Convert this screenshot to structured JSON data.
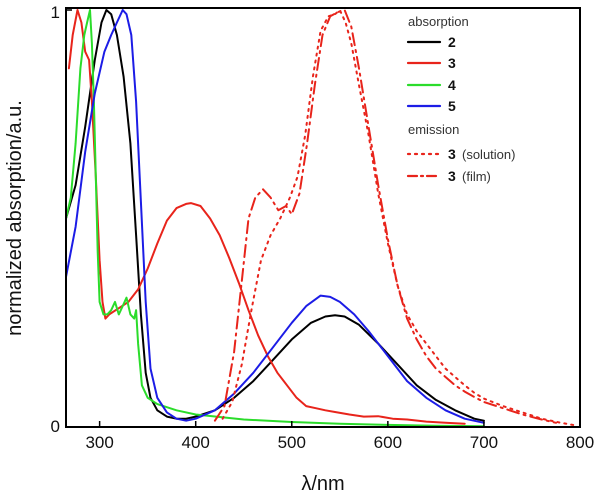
{
  "chart_data": {
    "type": "line",
    "title": "",
    "xlabel": "λ/nm",
    "ylabel": "normalized absorption/a.u.",
    "xlim": [
      265,
      800
    ],
    "ylim": [
      0,
      1
    ],
    "x_ticks": [
      "300",
      "400",
      "500",
      "600",
      "700",
      "800"
    ],
    "y_ticks": [
      "0",
      "1"
    ],
    "legend": {
      "position": "top-right",
      "group_absorption": "absorption",
      "group_emission": "emission",
      "entries": [
        {
          "key": "s2",
          "number": "2",
          "suffix": ""
        },
        {
          "key": "s3",
          "number": "3",
          "suffix": ""
        },
        {
          "key": "s4",
          "number": "4",
          "suffix": ""
        },
        {
          "key": "s5",
          "number": "5",
          "suffix": ""
        },
        {
          "key": "s3sol",
          "number": "3",
          "suffix": "(solution)"
        },
        {
          "key": "s3film",
          "number": "3",
          "suffix": "(film)"
        }
      ]
    },
    "series": [
      {
        "key": "s2",
        "name": "2",
        "group": "absorption",
        "color": "#000000",
        "dash": "solid",
        "points": [
          [
            265,
            0.5
          ],
          [
            275,
            0.58
          ],
          [
            285,
            0.72
          ],
          [
            295,
            0.88
          ],
          [
            302,
            0.97
          ],
          [
            307,
            1.0
          ],
          [
            312,
            0.99
          ],
          [
            318,
            0.94
          ],
          [
            325,
            0.84
          ],
          [
            332,
            0.68
          ],
          [
            338,
            0.46
          ],
          [
            343,
            0.27
          ],
          [
            348,
            0.13
          ],
          [
            353,
            0.07
          ],
          [
            360,
            0.04
          ],
          [
            370,
            0.025
          ],
          [
            380,
            0.02
          ],
          [
            390,
            0.02
          ],
          [
            400,
            0.025
          ],
          [
            420,
            0.04
          ],
          [
            440,
            0.07
          ],
          [
            460,
            0.11
          ],
          [
            480,
            0.16
          ],
          [
            500,
            0.21
          ],
          [
            520,
            0.25
          ],
          [
            535,
            0.265
          ],
          [
            545,
            0.268
          ],
          [
            555,
            0.265
          ],
          [
            570,
            0.245
          ],
          [
            590,
            0.2
          ],
          [
            610,
            0.15
          ],
          [
            630,
            0.1
          ],
          [
            650,
            0.065
          ],
          [
            670,
            0.04
          ],
          [
            690,
            0.02
          ],
          [
            700,
            0.015
          ]
        ]
      },
      {
        "key": "s3",
        "name": "3",
        "group": "absorption",
        "color": "#e8241b",
        "dash": "solid",
        "points": [
          [
            268,
            0.86
          ],
          [
            272,
            0.94
          ],
          [
            277,
            1.0
          ],
          [
            281,
            0.97
          ],
          [
            285,
            0.9
          ],
          [
            289,
            0.88
          ],
          [
            292,
            0.78
          ],
          [
            296,
            0.6
          ],
          [
            300,
            0.4
          ],
          [
            303,
            0.3
          ],
          [
            306,
            0.26
          ],
          [
            310,
            0.27
          ],
          [
            320,
            0.285
          ],
          [
            330,
            0.3
          ],
          [
            340,
            0.33
          ],
          [
            350,
            0.38
          ],
          [
            360,
            0.44
          ],
          [
            370,
            0.495
          ],
          [
            380,
            0.525
          ],
          [
            390,
            0.535
          ],
          [
            395,
            0.537
          ],
          [
            405,
            0.53
          ],
          [
            415,
            0.5
          ],
          [
            425,
            0.46
          ],
          [
            435,
            0.405
          ],
          [
            445,
            0.345
          ],
          [
            455,
            0.28
          ],
          [
            465,
            0.22
          ],
          [
            475,
            0.17
          ],
          [
            485,
            0.13
          ],
          [
            495,
            0.1
          ],
          [
            505,
            0.07
          ],
          [
            515,
            0.05
          ],
          [
            525,
            0.045
          ],
          [
            535,
            0.04
          ],
          [
            545,
            0.036
          ],
          [
            560,
            0.03
          ],
          [
            575,
            0.025
          ],
          [
            590,
            0.026
          ],
          [
            605,
            0.02
          ],
          [
            620,
            0.018
          ],
          [
            640,
            0.013
          ],
          [
            660,
            0.01
          ],
          [
            680,
            0.008
          ]
        ]
      },
      {
        "key": "s4",
        "name": "4",
        "group": "absorption",
        "color": "#2bdc2b",
        "dash": "solid",
        "points": [
          [
            265,
            0.5
          ],
          [
            270,
            0.55
          ],
          [
            275,
            0.68
          ],
          [
            280,
            0.86
          ],
          [
            284,
            0.94
          ],
          [
            287,
            0.97
          ],
          [
            290,
            1.0
          ],
          [
            292,
            0.92
          ],
          [
            294,
            0.78
          ],
          [
            296,
            0.6
          ],
          [
            298,
            0.42
          ],
          [
            300,
            0.3
          ],
          [
            304,
            0.27
          ],
          [
            308,
            0.27
          ],
          [
            312,
            0.28
          ],
          [
            316,
            0.3
          ],
          [
            320,
            0.27
          ],
          [
            324,
            0.29
          ],
          [
            328,
            0.31
          ],
          [
            332,
            0.27
          ],
          [
            336,
            0.26
          ],
          [
            338,
            0.28
          ],
          [
            340,
            0.2
          ],
          [
            344,
            0.1
          ],
          [
            350,
            0.07
          ],
          [
            360,
            0.055
          ],
          [
            380,
            0.04
          ],
          [
            400,
            0.03
          ],
          [
            450,
            0.018
          ],
          [
            500,
            0.012
          ],
          [
            550,
            0.008
          ],
          [
            600,
            0.005
          ],
          [
            650,
            0.003
          ],
          [
            700,
            0.002
          ]
        ]
      },
      {
        "key": "s5",
        "name": "5",
        "group": "absorption",
        "color": "#1c1ce6",
        "dash": "solid",
        "points": [
          [
            265,
            0.36
          ],
          [
            275,
            0.48
          ],
          [
            285,
            0.66
          ],
          [
            295,
            0.8
          ],
          [
            305,
            0.9
          ],
          [
            312,
            0.94
          ],
          [
            318,
            0.97
          ],
          [
            324,
            1.0
          ],
          [
            328,
            0.99
          ],
          [
            333,
            0.94
          ],
          [
            338,
            0.78
          ],
          [
            343,
            0.54
          ],
          [
            348,
            0.3
          ],
          [
            353,
            0.14
          ],
          [
            360,
            0.07
          ],
          [
            370,
            0.035
          ],
          [
            380,
            0.02
          ],
          [
            390,
            0.015
          ],
          [
            400,
            0.02
          ],
          [
            420,
            0.04
          ],
          [
            440,
            0.08
          ],
          [
            460,
            0.13
          ],
          [
            480,
            0.19
          ],
          [
            500,
            0.25
          ],
          [
            515,
            0.29
          ],
          [
            530,
            0.315
          ],
          [
            540,
            0.312
          ],
          [
            550,
            0.3
          ],
          [
            565,
            0.27
          ],
          [
            580,
            0.23
          ],
          [
            600,
            0.17
          ],
          [
            620,
            0.11
          ],
          [
            640,
            0.07
          ],
          [
            660,
            0.04
          ],
          [
            680,
            0.02
          ],
          [
            700,
            0.01
          ]
        ]
      },
      {
        "key": "s3sol",
        "name": "3 (solution)",
        "group": "emission",
        "color": "#e8241b",
        "dash": "dot",
        "points": [
          [
            428,
            0.02
          ],
          [
            438,
            0.06
          ],
          [
            448,
            0.15
          ],
          [
            458,
            0.28
          ],
          [
            468,
            0.4
          ],
          [
            478,
            0.46
          ],
          [
            488,
            0.5
          ],
          [
            498,
            0.55
          ],
          [
            506,
            0.6
          ],
          [
            514,
            0.7
          ],
          [
            522,
            0.84
          ],
          [
            530,
            0.95
          ],
          [
            538,
            0.985
          ],
          [
            545,
            0.99
          ],
          [
            550,
            1.0
          ],
          [
            556,
            0.97
          ],
          [
            562,
            0.92
          ],
          [
            570,
            0.82
          ],
          [
            580,
            0.7
          ],
          [
            590,
            0.56
          ],
          [
            600,
            0.44
          ],
          [
            610,
            0.34
          ],
          [
            620,
            0.27
          ],
          [
            630,
            0.23
          ],
          [
            640,
            0.2
          ],
          [
            650,
            0.17
          ],
          [
            660,
            0.14
          ],
          [
            670,
            0.12
          ],
          [
            680,
            0.1
          ],
          [
            690,
            0.082
          ],
          [
            700,
            0.068
          ],
          [
            720,
            0.05
          ],
          [
            740,
            0.035
          ],
          [
            760,
            0.02
          ],
          [
            780,
            0.01
          ],
          [
            795,
            0.004
          ]
        ]
      },
      {
        "key": "s3film",
        "name": "3 (film)",
        "group": "emission",
        "color": "#e8241b",
        "dash": "dashdot",
        "points": [
          [
            420,
            0.015
          ],
          [
            430,
            0.05
          ],
          [
            440,
            0.18
          ],
          [
            448,
            0.35
          ],
          [
            455,
            0.5
          ],
          [
            462,
            0.55
          ],
          [
            470,
            0.57
          ],
          [
            478,
            0.55
          ],
          [
            486,
            0.52
          ],
          [
            494,
            0.53
          ],
          [
            500,
            0.51
          ],
          [
            508,
            0.56
          ],
          [
            516,
            0.68
          ],
          [
            524,
            0.82
          ],
          [
            532,
            0.94
          ],
          [
            540,
            0.985
          ],
          [
            548,
            0.995
          ],
          [
            555,
            1.0
          ],
          [
            562,
            0.96
          ],
          [
            570,
            0.86
          ],
          [
            580,
            0.72
          ],
          [
            590,
            0.58
          ],
          [
            600,
            0.45
          ],
          [
            610,
            0.34
          ],
          [
            620,
            0.26
          ],
          [
            630,
            0.21
          ],
          [
            640,
            0.17
          ],
          [
            650,
            0.14
          ],
          [
            660,
            0.12
          ],
          [
            670,
            0.1
          ],
          [
            680,
            0.085
          ],
          [
            690,
            0.072
          ],
          [
            700,
            0.06
          ],
          [
            720,
            0.045
          ],
          [
            740,
            0.03
          ],
          [
            760,
            0.018
          ],
          [
            775,
            0.01
          ]
        ]
      }
    ]
  }
}
